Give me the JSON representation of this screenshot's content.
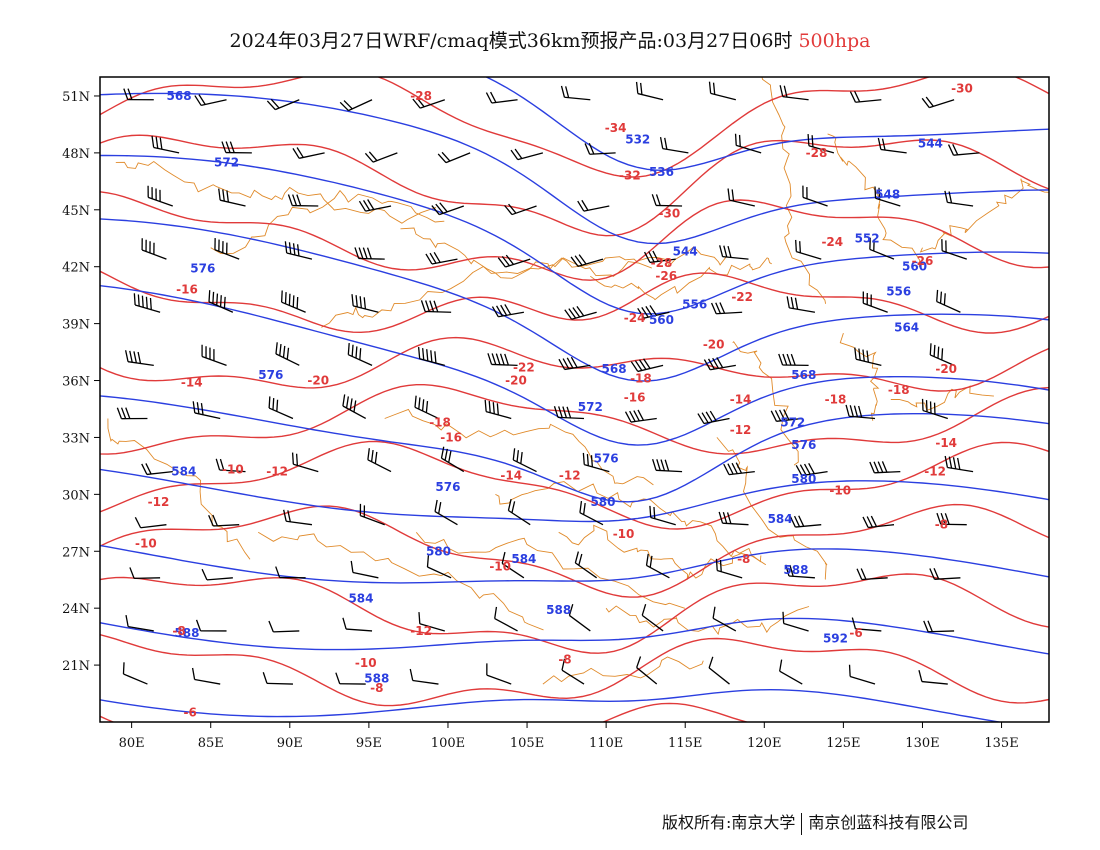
{
  "title": {
    "main": "2024年03月27日WRF/cmaq模式36km预报产品:03月27日06时",
    "level": "500hpa"
  },
  "colors": {
    "height_contour": "#2b3fe0",
    "temperature_contour": "#e03a3a",
    "border": "#e08a2a",
    "wind_barb": "#000000"
  },
  "map": {
    "projection": "lat-lon",
    "lon_range": [
      78,
      138
    ],
    "lat_range": [
      18,
      52
    ],
    "lon_ticks": [
      "80E",
      "85E",
      "90E",
      "95E",
      "100E",
      "105E",
      "110E",
      "115E",
      "120E",
      "125E",
      "130E",
      "135E"
    ],
    "lat_ticks": [
      "51N",
      "48N",
      "45N",
      "42N",
      "39N",
      "36N",
      "33N",
      "30N",
      "27N",
      "24N",
      "21N"
    ],
    "height_labels": [
      {
        "text": "568",
        "lon": 83,
        "lat": 51.0
      },
      {
        "text": "572",
        "lon": 86,
        "lat": 47.5
      },
      {
        "text": "532",
        "lon": 112,
        "lat": 48.7
      },
      {
        "text": "536",
        "lon": 113.5,
        "lat": 47.0
      },
      {
        "text": "544",
        "lon": 130.5,
        "lat": 48.5
      },
      {
        "text": "548",
        "lon": 127.8,
        "lat": 45.8
      },
      {
        "text": "552",
        "lon": 126.5,
        "lat": 43.5
      },
      {
        "text": "544",
        "lon": 115,
        "lat": 42.8
      },
      {
        "text": "556",
        "lon": 115.6,
        "lat": 40.0
      },
      {
        "text": "560",
        "lon": 113.5,
        "lat": 39.2
      },
      {
        "text": "576",
        "lon": 84.5,
        "lat": 41.9
      },
      {
        "text": "576",
        "lon": 88.8,
        "lat": 36.3
      },
      {
        "text": "568",
        "lon": 110.5,
        "lat": 36.6
      },
      {
        "text": "572",
        "lon": 109,
        "lat": 34.6
      },
      {
        "text": "576",
        "lon": 110,
        "lat": 31.9
      },
      {
        "text": "576",
        "lon": 100,
        "lat": 30.4
      },
      {
        "text": "580",
        "lon": 109.8,
        "lat": 29.6
      },
      {
        "text": "580",
        "lon": 99.4,
        "lat": 27.0
      },
      {
        "text": "584",
        "lon": 104.8,
        "lat": 26.6
      },
      {
        "text": "584",
        "lon": 94.5,
        "lat": 24.5
      },
      {
        "text": "588",
        "lon": 107,
        "lat": 23.9
      },
      {
        "text": "584",
        "lon": 121,
        "lat": 28.7
      },
      {
        "text": "588",
        "lon": 122,
        "lat": 26.0
      },
      {
        "text": "580",
        "lon": 122.5,
        "lat": 30.8
      },
      {
        "text": "576",
        "lon": 122.5,
        "lat": 32.6
      },
      {
        "text": "572",
        "lon": 121.8,
        "lat": 33.8
      },
      {
        "text": "568",
        "lon": 122.5,
        "lat": 36.3
      },
      {
        "text": "564",
        "lon": 129,
        "lat": 38.8
      },
      {
        "text": "588",
        "lon": 83.5,
        "lat": 22.7
      },
      {
        "text": "588",
        "lon": 95.5,
        "lat": 20.3
      },
      {
        "text": "584",
        "lon": 83.3,
        "lat": 31.2
      },
      {
        "text": "592",
        "lon": 124.5,
        "lat": 22.4
      },
      {
        "text": "556",
        "lon": 128.5,
        "lat": 40.7
      },
      {
        "text": "560",
        "lon": 129.5,
        "lat": 42.0
      }
    ],
    "temperature_labels": [
      {
        "text": "-30",
        "lon": 132.5,
        "lat": 51.4
      },
      {
        "text": "-28",
        "lon": 98.3,
        "lat": 51.0
      },
      {
        "text": "-34",
        "lon": 110.6,
        "lat": 49.3
      },
      {
        "text": "-32",
        "lon": 111.5,
        "lat": 46.8
      },
      {
        "text": "-28",
        "lon": 123.3,
        "lat": 48.0
      },
      {
        "text": "-30",
        "lon": 114,
        "lat": 44.8
      },
      {
        "text": "-24",
        "lon": 124.3,
        "lat": 43.3
      },
      {
        "text": "-28",
        "lon": 113.5,
        "lat": 42.2
      },
      {
        "text": "-26",
        "lon": 113.8,
        "lat": 41.5
      },
      {
        "text": "-26",
        "lon": 130,
        "lat": 42.3
      },
      {
        "text": "-22",
        "lon": 118.6,
        "lat": 40.4
      },
      {
        "text": "-24",
        "lon": 111.8,
        "lat": 39.3
      },
      {
        "text": "-20",
        "lon": 116.8,
        "lat": 37.9
      },
      {
        "text": "-16",
        "lon": 83.5,
        "lat": 40.8
      },
      {
        "text": "-14",
        "lon": 83.8,
        "lat": 35.9
      },
      {
        "text": "-20",
        "lon": 91.8,
        "lat": 36.0
      },
      {
        "text": "-22",
        "lon": 104.8,
        "lat": 36.7
      },
      {
        "text": "-20",
        "lon": 104.3,
        "lat": 36.0
      },
      {
        "text": "-18",
        "lon": 112.2,
        "lat": 36.1
      },
      {
        "text": "-16",
        "lon": 111.8,
        "lat": 35.1
      },
      {
        "text": "-18",
        "lon": 124.5,
        "lat": 35.0
      },
      {
        "text": "-18",
        "lon": 128.5,
        "lat": 35.5
      },
      {
        "text": "-20",
        "lon": 131.5,
        "lat": 36.6
      },
      {
        "text": "-14",
        "lon": 118.5,
        "lat": 35.0
      },
      {
        "text": "-12",
        "lon": 118.5,
        "lat": 33.4
      },
      {
        "text": "-18",
        "lon": 99.5,
        "lat": 33.8
      },
      {
        "text": "-16",
        "lon": 100.2,
        "lat": 33.0
      },
      {
        "text": "-14",
        "lon": 131.5,
        "lat": 32.7
      },
      {
        "text": "-12",
        "lon": 130.8,
        "lat": 31.2
      },
      {
        "text": "-10",
        "lon": 124.8,
        "lat": 30.2
      },
      {
        "text": "-10",
        "lon": 86.4,
        "lat": 31.3
      },
      {
        "text": "-12",
        "lon": 89.2,
        "lat": 31.2
      },
      {
        "text": "-14",
        "lon": 104,
        "lat": 31.0
      },
      {
        "text": "-12",
        "lon": 107.7,
        "lat": 31.0
      },
      {
        "text": "-12",
        "lon": 81.7,
        "lat": 29.6
      },
      {
        "text": "-10",
        "lon": 80.9,
        "lat": 27.4
      },
      {
        "text": "-10",
        "lon": 111.1,
        "lat": 27.9
      },
      {
        "text": "-8",
        "lon": 131.2,
        "lat": 28.4
      },
      {
        "text": "-8",
        "lon": 118.7,
        "lat": 26.6
      },
      {
        "text": "-10",
        "lon": 103.3,
        "lat": 26.2
      },
      {
        "text": "-12",
        "lon": 98.3,
        "lat": 22.8
      },
      {
        "text": "-8",
        "lon": 83,
        "lat": 22.8
      },
      {
        "text": "-10",
        "lon": 94.8,
        "lat": 21.1
      },
      {
        "text": "-8",
        "lon": 107.4,
        "lat": 21.3
      },
      {
        "text": "-6",
        "lon": 125.8,
        "lat": 22.7
      },
      {
        "text": "-8",
        "lon": 95.5,
        "lat": 19.8
      },
      {
        "text": "-6",
        "lon": 83.7,
        "lat": 18.5
      }
    ]
  },
  "credits": {
    "left": "版权所有:南京大学",
    "right": "南京创蓝科技有限公司"
  }
}
